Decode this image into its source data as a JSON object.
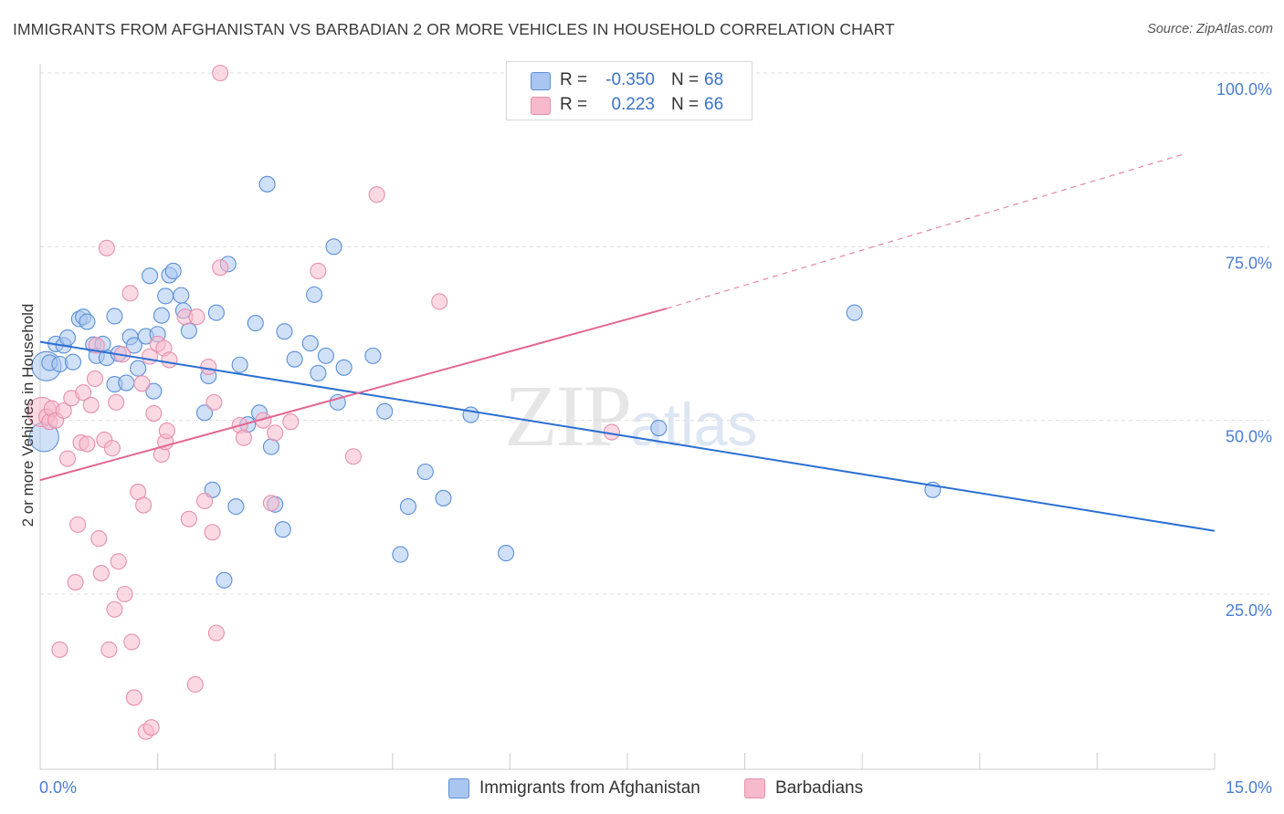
{
  "header": {
    "title": "IMMIGRANTS FROM AFGHANISTAN VS BARBADIAN 2 OR MORE VEHICLES IN HOUSEHOLD CORRELATION CHART",
    "source": "Source: ZipAtlas.com"
  },
  "watermark": {
    "zip": "ZIP",
    "atlas": "atlas"
  },
  "legend": {
    "rows": [
      {
        "r_label": "R =",
        "r_value": "-0.350",
        "n_label": "N =",
        "n_value": "68",
        "color": "#a9c6f0"
      },
      {
        "r_label": "R =",
        "r_value": "0.223",
        "n_label": "N =",
        "n_value": "66",
        "color": "#f7b9cc"
      }
    ]
  },
  "bottom_legend": {
    "series1": "Immigrants from Afghanistan",
    "series2": "Barbadians"
  },
  "colors": {
    "blue_fill": "#a9c6f0",
    "blue_stroke": "#5b8fd8",
    "blue_line": "#2a6fd3",
    "pink_fill": "#f7b9cc",
    "pink_stroke": "#e690ae",
    "pink_line": "#e36692",
    "grid": "#dddddd",
    "tick_text": "#4a7dd0"
  },
  "chart_data": {
    "type": "scatter",
    "title": "IMMIGRANTS FROM AFGHANISTAN VS BARBADIAN 2 OR MORE VEHICLES IN HOUSEHOLD CORRELATION CHART",
    "xlabel": "",
    "ylabel": "2 or more Vehicles in Household",
    "xlim": [
      0,
      15
    ],
    "ylim": [
      0,
      102
    ],
    "x_tick_labels": [
      "0.0%",
      "15.0%"
    ],
    "y_tick_labels": [
      "25.0%",
      "50.0%",
      "75.0%",
      "100.0%"
    ],
    "y_ticks": [
      25,
      50,
      75,
      100
    ],
    "grid": "horizontal dashed",
    "legend_position": "top-center",
    "series": [
      {
        "name": "Immigrants from Afghanistan",
        "color": "#a9c6f0",
        "trend": {
          "x": [
            0,
            15
          ],
          "y": [
            61.3,
            34.1
          ],
          "style": "solid"
        },
        "points": [
          {
            "x": 0.05,
            "y": 47.6,
            "size": "large"
          },
          {
            "x": 0.08,
            "y": 57.8,
            "size": "large"
          },
          {
            "x": 0.12,
            "y": 58.3
          },
          {
            "x": 0.2,
            "y": 61.0
          },
          {
            "x": 0.25,
            "y": 58.1
          },
          {
            "x": 0.3,
            "y": 60.8
          },
          {
            "x": 0.35,
            "y": 61.9
          },
          {
            "x": 0.42,
            "y": 58.4
          },
          {
            "x": 0.5,
            "y": 64.6
          },
          {
            "x": 0.55,
            "y": 64.9
          },
          {
            "x": 0.6,
            "y": 64.2
          },
          {
            "x": 0.68,
            "y": 60.9
          },
          {
            "x": 0.72,
            "y": 59.3
          },
          {
            "x": 0.8,
            "y": 61.0
          },
          {
            "x": 0.85,
            "y": 59.0
          },
          {
            "x": 0.95,
            "y": 55.2
          },
          {
            "x": 0.95,
            "y": 65.0
          },
          {
            "x": 1.0,
            "y": 59.6
          },
          {
            "x": 1.1,
            "y": 55.4
          },
          {
            "x": 1.15,
            "y": 62.0
          },
          {
            "x": 1.2,
            "y": 60.8
          },
          {
            "x": 1.25,
            "y": 57.5
          },
          {
            "x": 1.35,
            "y": 62.1
          },
          {
            "x": 1.4,
            "y": 70.8
          },
          {
            "x": 1.45,
            "y": 54.2
          },
          {
            "x": 1.5,
            "y": 62.4
          },
          {
            "x": 1.55,
            "y": 65.1
          },
          {
            "x": 1.6,
            "y": 67.9
          },
          {
            "x": 1.65,
            "y": 70.9
          },
          {
            "x": 1.7,
            "y": 71.5
          },
          {
            "x": 1.8,
            "y": 68.0
          },
          {
            "x": 1.83,
            "y": 65.8
          },
          {
            "x": 1.9,
            "y": 62.9
          },
          {
            "x": 2.1,
            "y": 51.1
          },
          {
            "x": 2.15,
            "y": 56.4
          },
          {
            "x": 2.2,
            "y": 40.0
          },
          {
            "x": 2.25,
            "y": 65.5
          },
          {
            "x": 2.35,
            "y": 27.0
          },
          {
            "x": 2.4,
            "y": 72.5
          },
          {
            "x": 2.5,
            "y": 37.6
          },
          {
            "x": 2.55,
            "y": 58.0
          },
          {
            "x": 2.65,
            "y": 49.4
          },
          {
            "x": 2.75,
            "y": 64.0
          },
          {
            "x": 2.8,
            "y": 51.1
          },
          {
            "x": 2.9,
            "y": 84.0
          },
          {
            "x": 2.95,
            "y": 46.2
          },
          {
            "x": 3.0,
            "y": 37.9
          },
          {
            "x": 3.1,
            "y": 34.3
          },
          {
            "x": 3.12,
            "y": 62.8
          },
          {
            "x": 3.25,
            "y": 58.8
          },
          {
            "x": 3.45,
            "y": 61.1
          },
          {
            "x": 3.5,
            "y": 68.1
          },
          {
            "x": 3.55,
            "y": 56.8
          },
          {
            "x": 3.65,
            "y": 59.3
          },
          {
            "x": 3.75,
            "y": 75.0
          },
          {
            "x": 3.8,
            "y": 52.6
          },
          {
            "x": 3.88,
            "y": 57.6
          },
          {
            "x": 4.25,
            "y": 59.3
          },
          {
            "x": 4.4,
            "y": 51.3
          },
          {
            "x": 4.6,
            "y": 30.7
          },
          {
            "x": 4.7,
            "y": 37.6
          },
          {
            "x": 4.92,
            "y": 42.6
          },
          {
            "x": 5.15,
            "y": 38.8
          },
          {
            "x": 5.5,
            "y": 50.8
          },
          {
            "x": 5.95,
            "y": 30.9
          },
          {
            "x": 7.9,
            "y": 48.9
          },
          {
            "x": 10.4,
            "y": 65.5
          },
          {
            "x": 11.4,
            "y": 40.0
          }
        ]
      },
      {
        "name": "Barbadians",
        "color": "#f7b9cc",
        "trend": {
          "x": [
            0,
            8.0,
            14.6
          ],
          "y": [
            41.4,
            66.1,
            88.3
          ],
          "style": "solid then dashed"
        },
        "points": [
          {
            "x": 0.02,
            "y": 51.2,
            "size": "large"
          },
          {
            "x": 0.08,
            "y": 50.5
          },
          {
            "x": 0.12,
            "y": 49.8
          },
          {
            "x": 0.15,
            "y": 51.7
          },
          {
            "x": 0.2,
            "y": 50.0
          },
          {
            "x": 0.25,
            "y": 17.0
          },
          {
            "x": 0.3,
            "y": 51.4
          },
          {
            "x": 0.35,
            "y": 44.5
          },
          {
            "x": 0.4,
            "y": 53.2
          },
          {
            "x": 0.45,
            "y": 26.7
          },
          {
            "x": 0.48,
            "y": 35.0
          },
          {
            "x": 0.52,
            "y": 46.8
          },
          {
            "x": 0.55,
            "y": 54.0
          },
          {
            "x": 0.6,
            "y": 46.6
          },
          {
            "x": 0.65,
            "y": 52.2
          },
          {
            "x": 0.7,
            "y": 56.0
          },
          {
            "x": 0.72,
            "y": 60.8
          },
          {
            "x": 0.75,
            "y": 33.0
          },
          {
            "x": 0.78,
            "y": 28.0
          },
          {
            "x": 0.82,
            "y": 47.2
          },
          {
            "x": 0.85,
            "y": 74.8
          },
          {
            "x": 0.88,
            "y": 17.0
          },
          {
            "x": 0.92,
            "y": 46.0
          },
          {
            "x": 0.95,
            "y": 22.8
          },
          {
            "x": 0.97,
            "y": 52.6
          },
          {
            "x": 1.0,
            "y": 29.7
          },
          {
            "x": 1.05,
            "y": 59.5
          },
          {
            "x": 1.08,
            "y": 25.0
          },
          {
            "x": 1.15,
            "y": 68.3
          },
          {
            "x": 1.17,
            "y": 18.1
          },
          {
            "x": 1.2,
            "y": 10.1
          },
          {
            "x": 1.25,
            "y": 39.7
          },
          {
            "x": 1.3,
            "y": 55.3
          },
          {
            "x": 1.32,
            "y": 37.8
          },
          {
            "x": 1.35,
            "y": 5.2
          },
          {
            "x": 1.4,
            "y": 59.2
          },
          {
            "x": 1.42,
            "y": 5.8
          },
          {
            "x": 1.45,
            "y": 51.0
          },
          {
            "x": 1.5,
            "y": 61.0
          },
          {
            "x": 1.55,
            "y": 45.1
          },
          {
            "x": 1.58,
            "y": 60.4
          },
          {
            "x": 1.6,
            "y": 46.9
          },
          {
            "x": 1.62,
            "y": 48.5
          },
          {
            "x": 1.65,
            "y": 58.7
          },
          {
            "x": 1.85,
            "y": 64.9
          },
          {
            "x": 1.9,
            "y": 35.8
          },
          {
            "x": 1.98,
            "y": 12.0
          },
          {
            "x": 2.0,
            "y": 64.9
          },
          {
            "x": 2.1,
            "y": 38.4
          },
          {
            "x": 2.15,
            "y": 57.7
          },
          {
            "x": 2.2,
            "y": 33.9
          },
          {
            "x": 2.22,
            "y": 52.6
          },
          {
            "x": 2.25,
            "y": 19.4
          },
          {
            "x": 2.3,
            "y": 72.0
          },
          {
            "x": 2.55,
            "y": 49.3
          },
          {
            "x": 2.6,
            "y": 47.5
          },
          {
            "x": 2.85,
            "y": 50.0
          },
          {
            "x": 2.95,
            "y": 38.1
          },
          {
            "x": 3.0,
            "y": 48.2
          },
          {
            "x": 3.2,
            "y": 49.8
          },
          {
            "x": 3.55,
            "y": 71.5
          },
          {
            "x": 4.0,
            "y": 44.8
          },
          {
            "x": 4.3,
            "y": 82.5
          },
          {
            "x": 5.1,
            "y": 67.1
          },
          {
            "x": 7.3,
            "y": 48.3
          },
          {
            "x": 2.3,
            "y": 100.0
          }
        ]
      }
    ]
  }
}
